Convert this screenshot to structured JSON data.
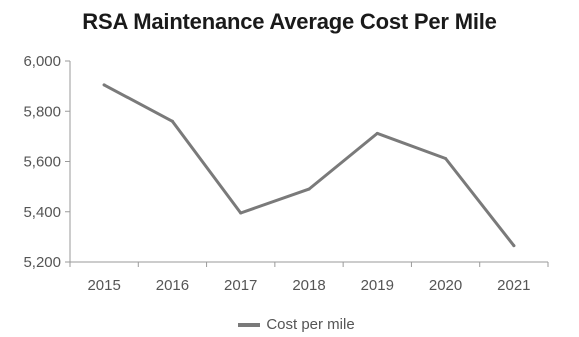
{
  "chart_data": {
    "type": "line",
    "title": "RSA Maintenance Average Cost Per Mile",
    "xlabel": "",
    "ylabel": "",
    "categories": [
      "2015",
      "2016",
      "2017",
      "2018",
      "2019",
      "2020",
      "2021"
    ],
    "series": [
      {
        "name": "Cost per mile",
        "values": [
          5905,
          5760,
          5395,
          5490,
          5712,
          5612,
          5265
        ],
        "color": "#7a7a7a"
      }
    ],
    "ylim": [
      5200,
      6000
    ],
    "yticks": [
      5200,
      5400,
      5600,
      5800,
      6000
    ],
    "ytick_labels": [
      "5,200",
      "5,400",
      "5,600",
      "5,800",
      "6,000"
    ],
    "grid": false,
    "legend": "bottom"
  }
}
